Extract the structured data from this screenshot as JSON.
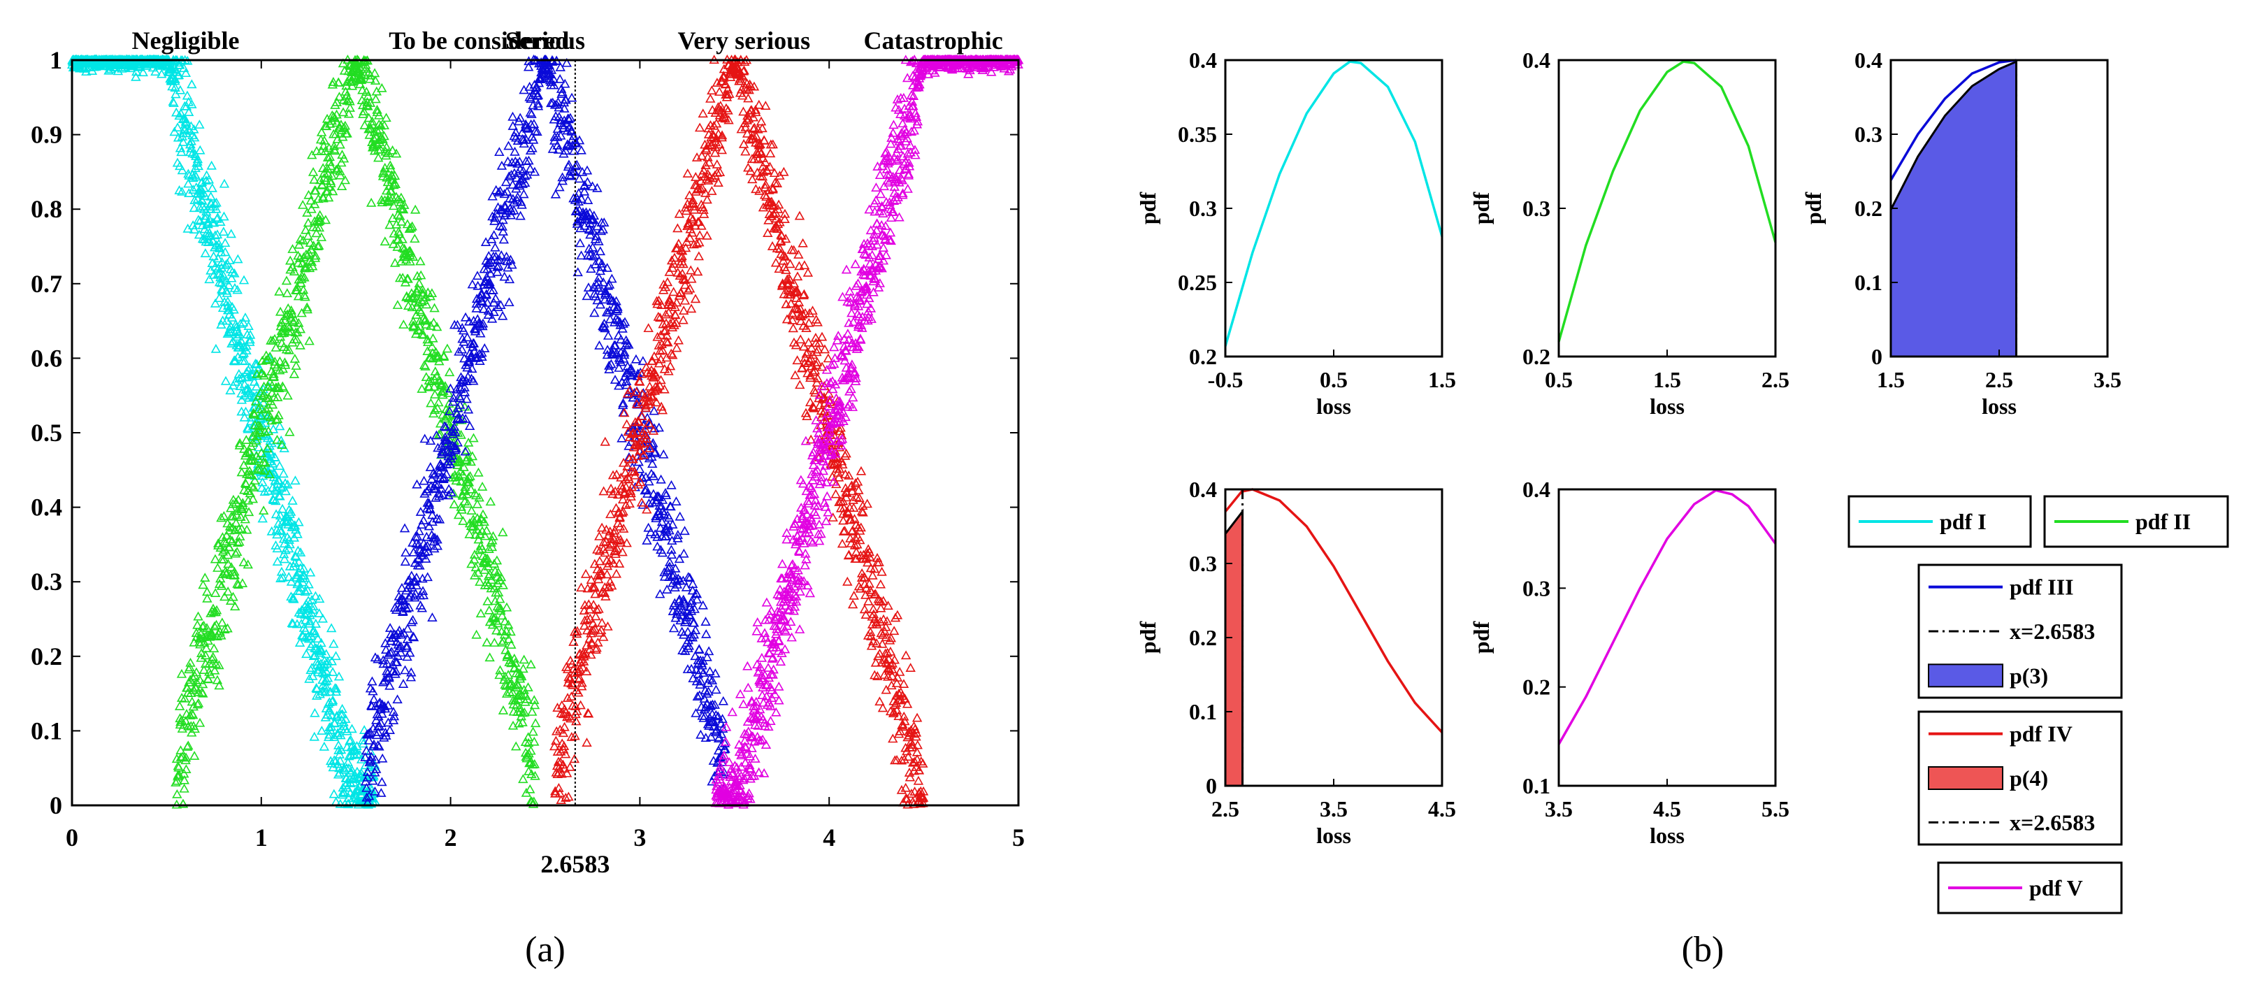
{
  "colors": {
    "cyan": "#00E5E5",
    "green": "#22DD22",
    "blue": "#0A0AD8",
    "red": "#E51414",
    "magenta": "#E100E1",
    "fill_blue": "#5A5AE6",
    "fill_red": "#EE5555",
    "black": "#000000"
  },
  "captions": {
    "a": "(a)",
    "b": "(b)"
  },
  "chart_data": [
    {
      "id": "a",
      "type": "scatter",
      "title": "",
      "xlabel": "",
      "ylabel": "",
      "xlim": [
        0,
        5
      ],
      "ylim": [
        0,
        1
      ],
      "xticks": [
        0,
        1,
        2,
        3,
        4,
        5
      ],
      "yticks": [
        0,
        0.1,
        0.2,
        0.3,
        0.4,
        0.5,
        0.6,
        0.7,
        0.8,
        0.9,
        1
      ],
      "ytick_labels": [
        "0",
        "0.1",
        "0.2",
        "0.3",
        "0.4",
        "0.5",
        "0.6",
        "0.7",
        "0.8",
        "0.9",
        "1"
      ],
      "vline": {
        "x": 2.6583,
        "label": "2.6583"
      },
      "series": [
        {
          "name": "Negligible",
          "color": "cyan",
          "shape": "trapezoid",
          "points": [
            0,
            0,
            0.5,
            1.5
          ],
          "x_range": [
            0,
            1.6
          ]
        },
        {
          "name": "To be considered",
          "color": "green",
          "shape": "triangle",
          "points": [
            0.5,
            1.5,
            2.5
          ],
          "x_range": [
            0.55,
            2.45
          ]
        },
        {
          "name": "Serious",
          "color": "blue",
          "shape": "triangle",
          "points": [
            1.5,
            2.5,
            3.5
          ],
          "x_range": [
            1.55,
            3.45
          ]
        },
        {
          "name": "Very serious",
          "color": "red",
          "shape": "triangle",
          "points": [
            2.5,
            3.5,
            4.5
          ],
          "x_range": [
            2.55,
            4.5
          ]
        },
        {
          "name": "Catastrophic",
          "color": "magenta",
          "shape": "trapezoid",
          "points": [
            3.5,
            4.5,
            5,
            5
          ],
          "x_range": [
            3.4,
            5
          ]
        }
      ]
    },
    {
      "id": "b1",
      "type": "line",
      "x": [
        -0.5,
        -0.25,
        0,
        0.25,
        0.5,
        0.65,
        0.75,
        1,
        1.25,
        1.5
      ],
      "y": [
        0.207,
        0.27,
        0.323,
        0.364,
        0.391,
        0.399,
        0.398,
        0.382,
        0.345,
        0.281
      ],
      "color": "cyan",
      "xlim": [
        -0.5,
        1.5
      ],
      "ylim": [
        0.2,
        0.4
      ],
      "xticks": [
        -0.5,
        0.5,
        1.5
      ],
      "xtick_labels": [
        "-0.5",
        "0.5",
        "1.5"
      ],
      "yticks": [
        0.2,
        0.25,
        0.3,
        0.35,
        0.4
      ],
      "ytick_labels": [
        "0.2",
        "0.25",
        "0.3",
        "0.35",
        "0.4"
      ],
      "xlabel": "loss",
      "ylabel": "pdf"
    },
    {
      "id": "b2",
      "type": "line",
      "x": [
        0.5,
        0.75,
        1,
        1.25,
        1.5,
        1.65,
        1.75,
        2,
        2.25,
        2.5
      ],
      "y": [
        0.21,
        0.275,
        0.325,
        0.366,
        0.392,
        0.399,
        0.398,
        0.382,
        0.342,
        0.277
      ],
      "color": "green",
      "xlim": [
        0.5,
        2.5
      ],
      "ylim": [
        0.2,
        0.4
      ],
      "xticks": [
        0.5,
        1.5,
        2.5
      ],
      "xtick_labels": [
        "0.5",
        "1.5",
        "2.5"
      ],
      "yticks": [
        0.2,
        0.3,
        0.4
      ],
      "ytick_labels": [
        "0.2",
        "0.3",
        "0.4"
      ],
      "xlabel": "loss",
      "ylabel": "pdf"
    },
    {
      "id": "b3",
      "type": "area",
      "series": [
        {
          "name": "pdf III",
          "x": [
            1.5,
            1.75,
            2,
            2.25,
            2.5,
            2.6583
          ],
          "y": [
            0.238,
            0.3,
            0.348,
            0.382,
            0.397,
            0.4
          ],
          "color": "blue"
        },
        {
          "name": "p(3)",
          "x": [
            1.5,
            1.75,
            2,
            2.25,
            2.5,
            2.6583
          ],
          "y": [
            0.198,
            0.27,
            0.325,
            0.365,
            0.388,
            0.398
          ],
          "color": "fill_blue"
        }
      ],
      "vline": 2.6583,
      "xlim": [
        1.5,
        3.5
      ],
      "ylim": [
        0,
        0.4
      ],
      "xticks": [
        1.5,
        2.5,
        3.5
      ],
      "xtick_labels": [
        "1.5",
        "2.5",
        "3.5"
      ],
      "yticks": [
        0,
        0.1,
        0.2,
        0.3,
        0.4
      ],
      "ytick_labels": [
        "0",
        "0.1",
        "0.2",
        "0.3",
        "0.4"
      ],
      "xlabel": "loss",
      "ylabel": "pdf"
    },
    {
      "id": "b4",
      "type": "area",
      "series": [
        {
          "name": "pdf IV",
          "x": [
            2.5,
            2.65,
            2.75,
            3,
            3.25,
            3.5,
            3.75,
            4,
            4.25,
            4.5
          ],
          "y": [
            0.37,
            0.397,
            0.4,
            0.385,
            0.35,
            0.296,
            0.232,
            0.168,
            0.112,
            0.072
          ],
          "color": "red"
        },
        {
          "name": "p(4)",
          "x": [
            2.5,
            2.6583
          ],
          "y": [
            0.34,
            0.37
          ],
          "color": "fill_red"
        }
      ],
      "vline": 2.6583,
      "xlim": [
        2.5,
        4.5
      ],
      "ylim": [
        0,
        0.4
      ],
      "xticks": [
        2.5,
        3.5,
        4.5
      ],
      "xtick_labels": [
        "2.5",
        "3.5",
        "4.5"
      ],
      "yticks": [
        0,
        0.1,
        0.2,
        0.3,
        0.4
      ],
      "ytick_labels": [
        "0",
        "0.1",
        "0.2",
        "0.3",
        "0.4"
      ],
      "xlabel": "loss",
      "ylabel": "pdf"
    },
    {
      "id": "b5",
      "type": "line",
      "x": [
        3.5,
        3.75,
        4,
        4.25,
        4.5,
        4.75,
        4.95,
        5.1,
        5.25,
        5.5
      ],
      "y": [
        0.142,
        0.19,
        0.245,
        0.3,
        0.35,
        0.385,
        0.399,
        0.395,
        0.383,
        0.345
      ],
      "color": "magenta",
      "xlim": [
        3.5,
        5.5
      ],
      "ylim": [
        0.1,
        0.4
      ],
      "xticks": [
        3.5,
        4.5,
        5.5
      ],
      "xtick_labels": [
        "3.5",
        "4.5",
        "5.5"
      ],
      "yticks": [
        0.1,
        0.2,
        0.3,
        0.4
      ],
      "ytick_labels": [
        "0.1",
        "0.2",
        "0.3",
        "0.4"
      ],
      "xlabel": "loss",
      "ylabel": "pdf"
    }
  ],
  "legends": {
    "pdf1": [
      {
        "label": "pdf I",
        "kind": "line",
        "color": "cyan"
      }
    ],
    "pdf2": [
      {
        "label": "pdf II",
        "kind": "line",
        "color": "green"
      }
    ],
    "pdf3": [
      {
        "label": "pdf III",
        "kind": "line",
        "color": "blue"
      },
      {
        "label": "x=2.6583",
        "kind": "dashdot",
        "color": "black"
      },
      {
        "label": "p(3)",
        "kind": "patch",
        "color": "fill_blue"
      }
    ],
    "pdf4": [
      {
        "label": "pdf IV",
        "kind": "line",
        "color": "red"
      },
      {
        "label": "p(4)",
        "kind": "patch",
        "color": "fill_red"
      },
      {
        "label": "x=2.6583",
        "kind": "dashdot",
        "color": "black"
      }
    ],
    "pdf5": [
      {
        "label": "pdf V",
        "kind": "line",
        "color": "magenta"
      }
    ]
  }
}
